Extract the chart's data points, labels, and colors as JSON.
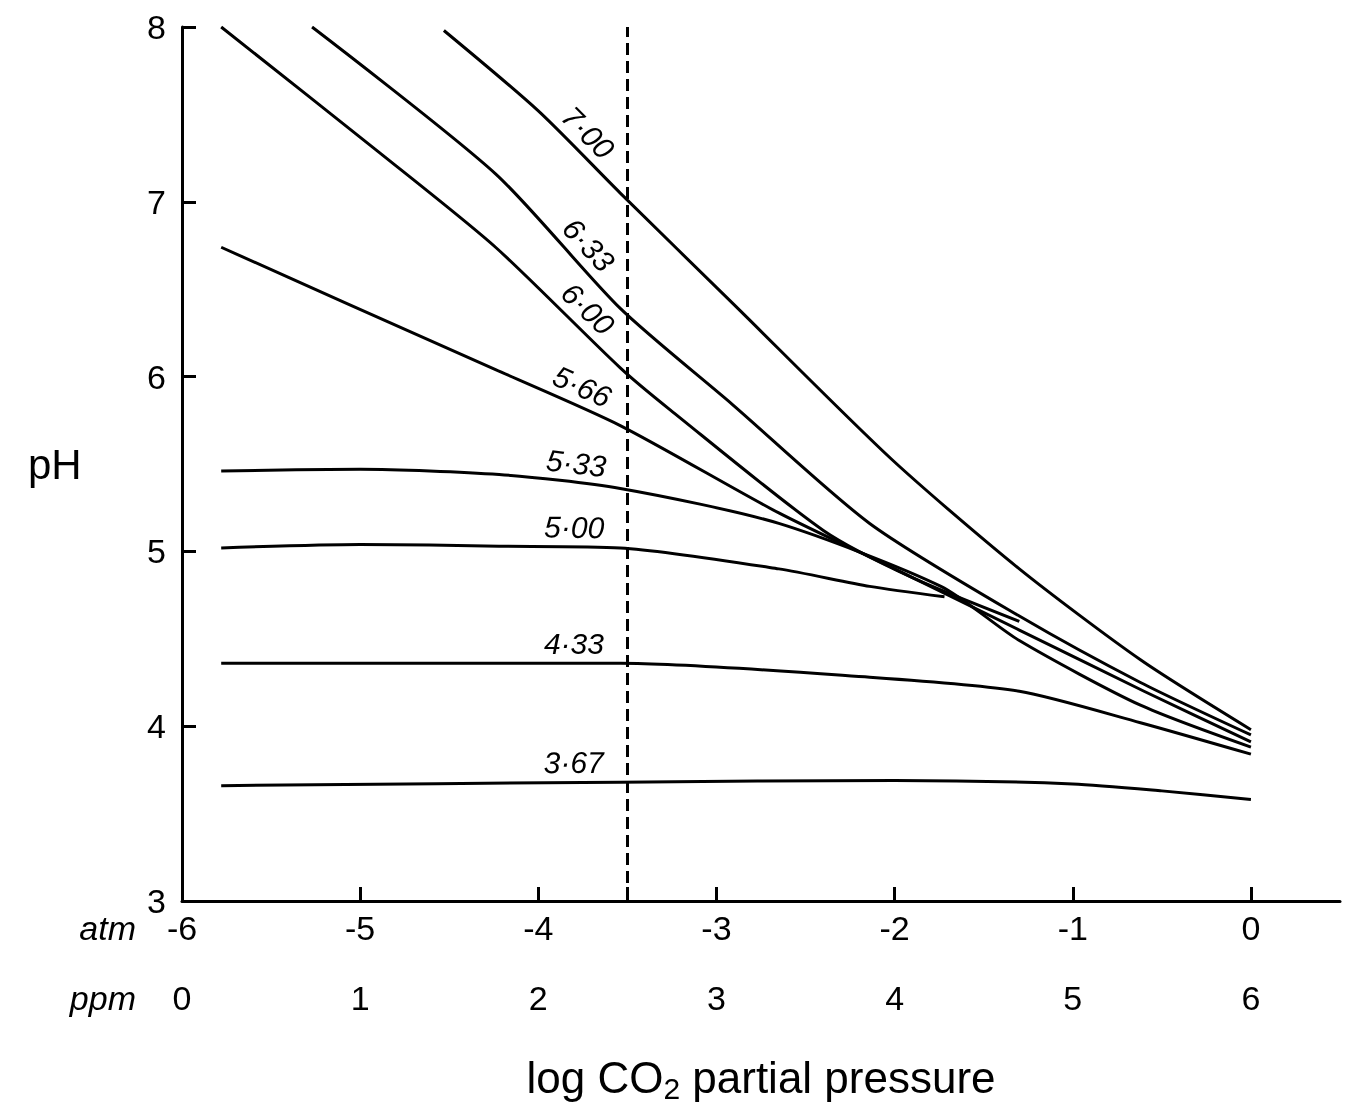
{
  "chart_data": {
    "type": "line",
    "xlabel": "log CO$_{2}$ partial pressure",
    "ylabel": "pH",
    "annotations": [
      "atm",
      "ppm"
    ],
    "xlim": [
      -6,
      0.5
    ],
    "xticks": [
      -6,
      -5,
      -4,
      {
        "value": -3.5,
        "label": null
      },
      -3,
      -2,
      -1,
      0
    ],
    "x2lim": [
      0,
      6.5
    ],
    "x2ticks": [
      0,
      1,
      2,
      3,
      4,
      5,
      6
    ],
    "ylim": [
      3,
      8
    ],
    "yticks": [
      3,
      4,
      5,
      6,
      7,
      8
    ],
    "grid": false,
    "legend": false,
    "marker": "none",
    "line_style": "solid",
    "ref_lines": [
      {
        "axis": "x",
        "value": -3.5,
        "line_style": "dashed",
        "color": "#000000"
      }
    ],
    "series": [
      {
        "name": "7·00",
        "color": "#000000",
        "x": [
          -4.53,
          -4,
          -3.54,
          -2.9,
          -2.02,
          -1.3,
          -0.62,
          0
        ],
        "values": [
          7.98,
          7.52,
          7.05,
          6.41,
          5.53,
          4.9,
          4.38,
          3.98
        ]
      },
      {
        "name": "6·33",
        "color": "#000000",
        "x": [
          -5.27,
          -4.24,
          -3.54,
          -2.91,
          -2.14,
          -1.3,
          -0.62,
          0
        ],
        "values": [
          8.0,
          7.16,
          6.39,
          5.84,
          5.16,
          4.63,
          4.25,
          3.95
        ]
      },
      {
        "name": "6·00",
        "color": "#000000",
        "x": [
          -5.78,
          -4.89,
          -4.24,
          -3.54,
          -3.26,
          -2.4,
          -1.9,
          -1.3
        ],
        "values": [
          8.0,
          7.28,
          6.74,
          6.05,
          5.81,
          5.12,
          4.85,
          4.6
        ]
      },
      {
        "name": "5·66",
        "color": "#000000",
        "x": [
          -5.78,
          -5.08,
          -4.24,
          -3.54,
          -2.65,
          -2.0,
          -1.3,
          -0.6,
          0
        ],
        "values": [
          6.74,
          6.42,
          6.04,
          5.72,
          5.22,
          4.9,
          4.55,
          4.2,
          3.91
        ]
      },
      {
        "name": "5·33",
        "color": "#000000",
        "x": [
          -5.78,
          -5.0,
          -4.22,
          -3.54,
          -2.65,
          -1.74,
          -1.3,
          -0.62,
          0
        ],
        "values": [
          5.46,
          5.47,
          5.44,
          5.36,
          5.16,
          4.8,
          4.49,
          4.12,
          3.88
        ]
      },
      {
        "name": "5·00",
        "color": "#000000",
        "x": [
          -5.78,
          -5.0,
          -4.22,
          -3.54,
          -2.65,
          -2.14,
          -1.72
        ],
        "values": [
          5.02,
          5.04,
          5.03,
          5.02,
          4.9,
          4.8,
          4.74
        ]
      },
      {
        "name": "4·33",
        "color": "#000000",
        "x": [
          -5.78,
          -5.0,
          -3.54,
          -2.14,
          -1.3,
          -0.62,
          0
        ],
        "values": [
          4.36,
          4.36,
          4.36,
          4.28,
          4.2,
          4.02,
          3.84
        ]
      },
      {
        "name": "3·67",
        "color": "#000000",
        "x": [
          -5.78,
          -3.54,
          -2.0,
          -1.0,
          -0.5,
          0
        ],
        "values": [
          3.66,
          3.68,
          3.69,
          3.67,
          3.63,
          3.58
        ]
      }
    ]
  }
}
